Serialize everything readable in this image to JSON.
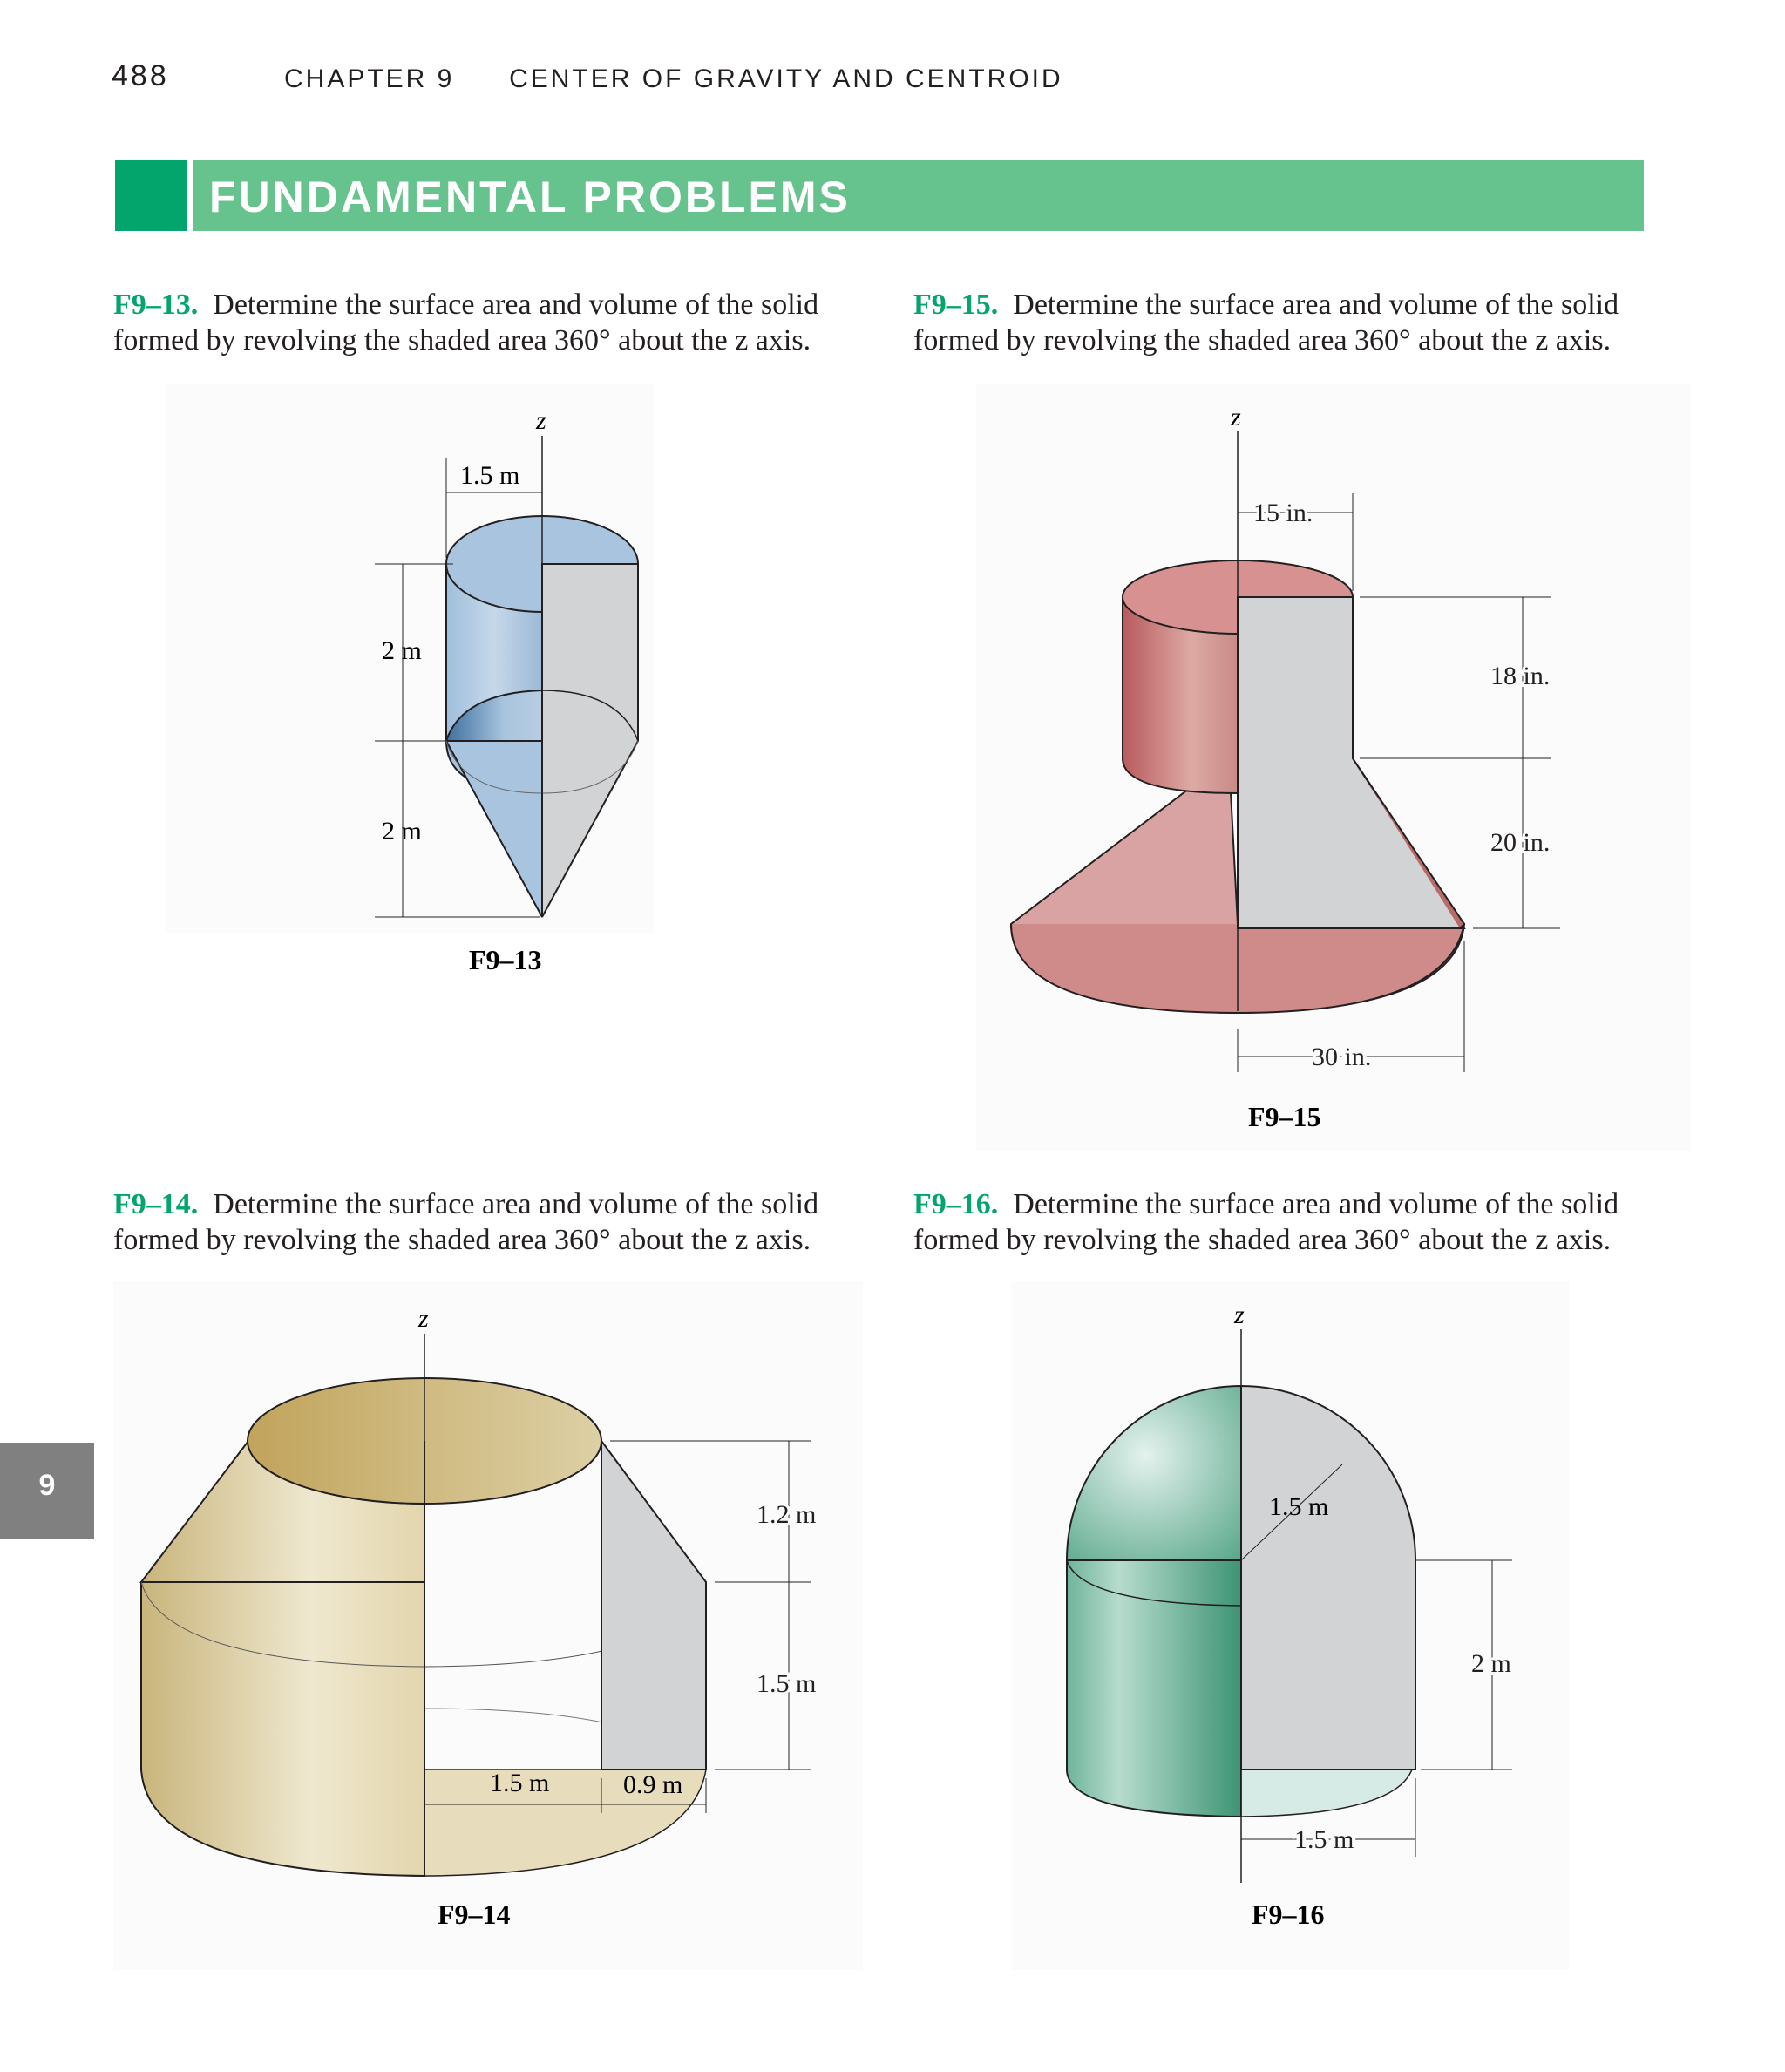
{
  "header": {
    "page_number": "488",
    "chapter_label": "CHAPTER 9",
    "chapter_title": "CENTER OF GRAVITY AND CENTROID"
  },
  "banner": {
    "title": "FUNDAMENTAL PROBLEMS"
  },
  "side_tab": {
    "label": "9"
  },
  "problems": {
    "f913": {
      "number": "F9–13.",
      "text_line1": "Determine the surface area and volume of the solid",
      "text_line2": "formed by revolving the shaded area 360° about the z axis.",
      "figure": {
        "caption": "F9–13",
        "axis": "z",
        "dims": [
          "1.5 m",
          "2 m",
          "2 m"
        ]
      }
    },
    "f915": {
      "number": "F9–15.",
      "text_line1": "Determine the surface area and volume of the solid",
      "text_line2": "formed by revolving the shaded area 360° about the z axis.",
      "figure": {
        "caption": "F9–15",
        "axis": "z",
        "dims": [
          "15 in.",
          "18 in.",
          "20 in.",
          "30 in."
        ]
      }
    },
    "f914": {
      "number": "F9–14.",
      "text_line1": "Determine the surface area and volume of the solid",
      "text_line2": "formed by revolving the shaded area 360° about the z axis.",
      "figure": {
        "caption": "F9–14",
        "axis": "z",
        "dims": [
          "1.2 m",
          "1.5 m",
          "1.5 m",
          "0.9 m"
        ]
      }
    },
    "f916": {
      "number": "F9–16.",
      "text_line1": "Determine the surface area and volume of the solid",
      "text_line2": "formed by revolving the shaded area 360° about the z axis.",
      "figure": {
        "caption": "F9–16",
        "axis": "z",
        "dims": [
          "1.5 m",
          "2 m",
          "1.5 m"
        ]
      }
    }
  },
  "colors": {
    "accent_green": "#03a56c",
    "banner_green": "#67c38e",
    "section_gray": "#d1d3d4",
    "f913_fill": "#a9c4de",
    "f915_fill": "#cf8a8a",
    "f914_fill": "#d8c690",
    "f916_fill": "#8ecfb5"
  }
}
